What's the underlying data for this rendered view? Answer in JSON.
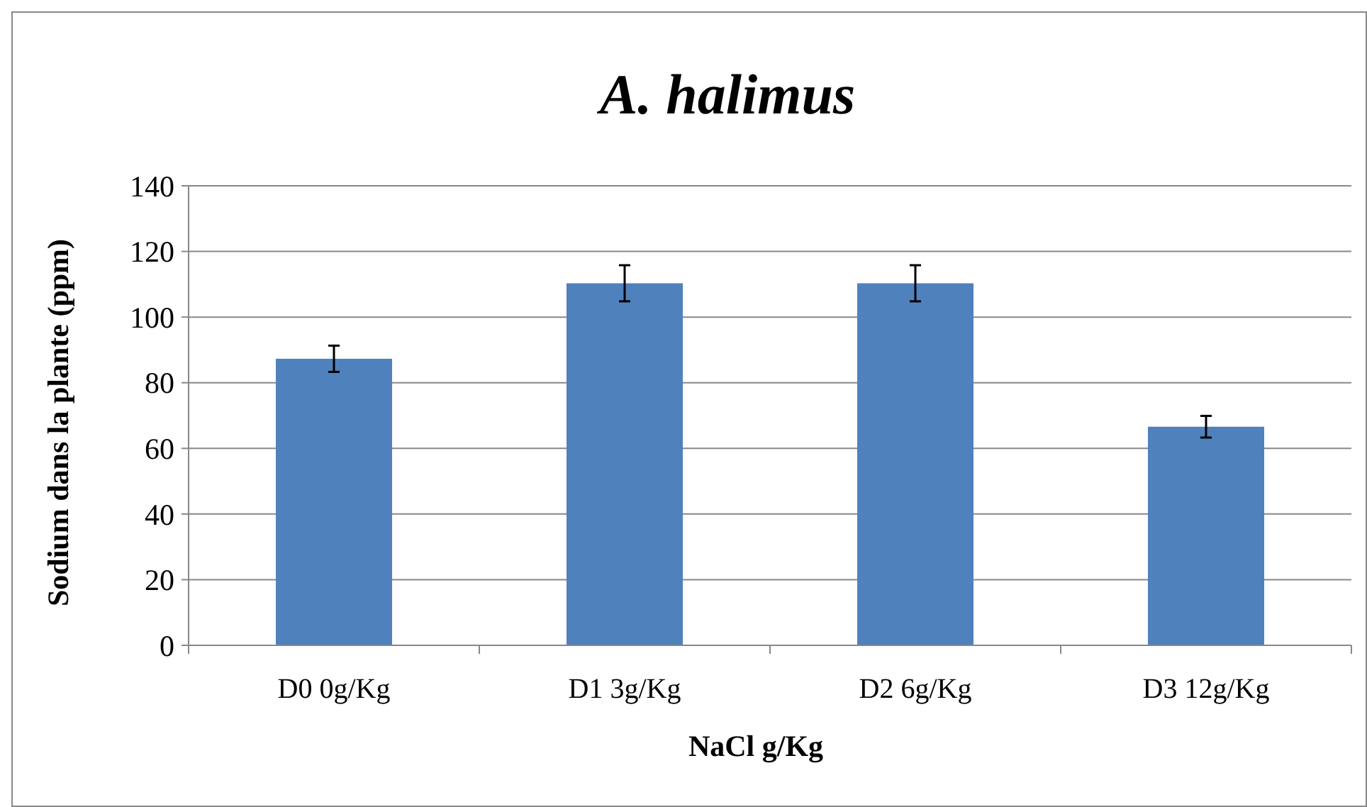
{
  "chart_data": {
    "type": "bar",
    "title": "A. halimus",
    "xlabel": "NaCl g/Kg",
    "ylabel": "Sodium dans la plante (ppm)",
    "categories": [
      "D0 0g/Kg",
      "D1 3g/Kg",
      "D2 6g/Kg",
      "D3 12g/Kg"
    ],
    "values": [
      87.3,
      110.3,
      110.3,
      66.6
    ],
    "errors": [
      4,
      5.5,
      5.5,
      3.3
    ],
    "color": "#4f81bd",
    "ylim": [
      0,
      140
    ],
    "yticks": [
      0,
      20,
      40,
      60,
      80,
      100,
      120,
      140
    ],
    "grid": "y"
  }
}
